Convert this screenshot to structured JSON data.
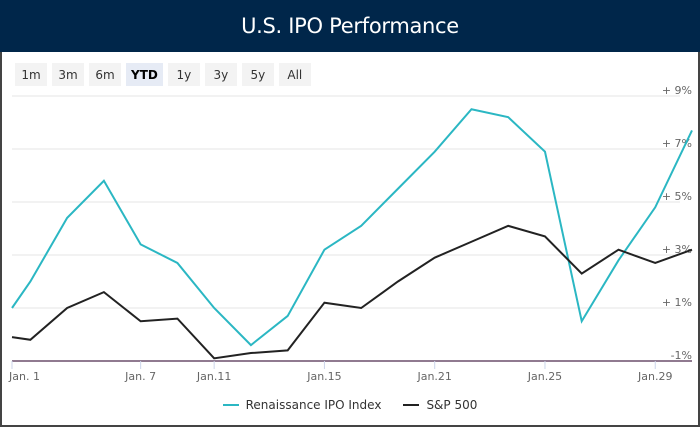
{
  "header": {
    "title": "U.S. IPO Performance"
  },
  "range_selector": {
    "buttons": [
      "1m",
      "3m",
      "6m",
      "YTD",
      "1y",
      "3y",
      "5y",
      "All"
    ],
    "selected": "YTD"
  },
  "colors": {
    "header_bg": "#00264a",
    "ipo": "#2bb7c3",
    "sp500": "#222222",
    "grid": "#e6e6e6",
    "axis": "#6b4e6b"
  },
  "chart_data": {
    "type": "line",
    "title": "U.S. IPO Performance",
    "xlabel": "",
    "ylabel": "",
    "ylim": [
      -1,
      9
    ],
    "y_ticks": [
      {
        "value": 9,
        "label": "+ 9%"
      },
      {
        "value": 7,
        "label": "+ 7%"
      },
      {
        "value": 5,
        "label": "+ 5%"
      },
      {
        "value": 3,
        "label": "+ 3%"
      },
      {
        "value": 1,
        "label": "+ 1%"
      },
      {
        "value": -1,
        "label": "-1%"
      }
    ],
    "x_ticks": [
      {
        "index": 0,
        "label": "Jan. 1"
      },
      {
        "index": 4,
        "label": "Jan. 7"
      },
      {
        "index": 6,
        "label": "Jan.11"
      },
      {
        "index": 9,
        "label": "Jan.15"
      },
      {
        "index": 12,
        "label": "Jan.21"
      },
      {
        "index": 15,
        "label": "Jan.25"
      },
      {
        "index": 18,
        "label": "Jan.29"
      }
    ],
    "x_positions": [
      0,
      0.5,
      1.5,
      2.5,
      3.5,
      4.5,
      5.5,
      6.5,
      7.5,
      8.5,
      9.5,
      10.5,
      11.5,
      12.5,
      13.5,
      14.5,
      15.5,
      16.5,
      17.5,
      18.5
    ],
    "grid": true,
    "legend_position": "bottom-center",
    "series": [
      {
        "name": "Renaissance IPO Index",
        "color": "#2bb7c3",
        "values": [
          1.0,
          2.0,
          4.4,
          5.8,
          3.4,
          2.7,
          1.0,
          -0.4,
          0.7,
          3.2,
          4.1,
          5.5,
          6.9,
          8.5,
          8.2,
          6.9,
          0.5,
          2.8,
          4.8,
          7.7
        ]
      },
      {
        "name": "S&P 500",
        "color": "#222222",
        "values": [
          -0.1,
          -0.2,
          1.0,
          1.6,
          0.5,
          0.6,
          -0.9,
          -0.7,
          -0.6,
          1.2,
          1.0,
          2.0,
          2.9,
          3.5,
          4.1,
          3.7,
          2.3,
          3.2,
          2.7,
          3.2
        ]
      }
    ]
  }
}
